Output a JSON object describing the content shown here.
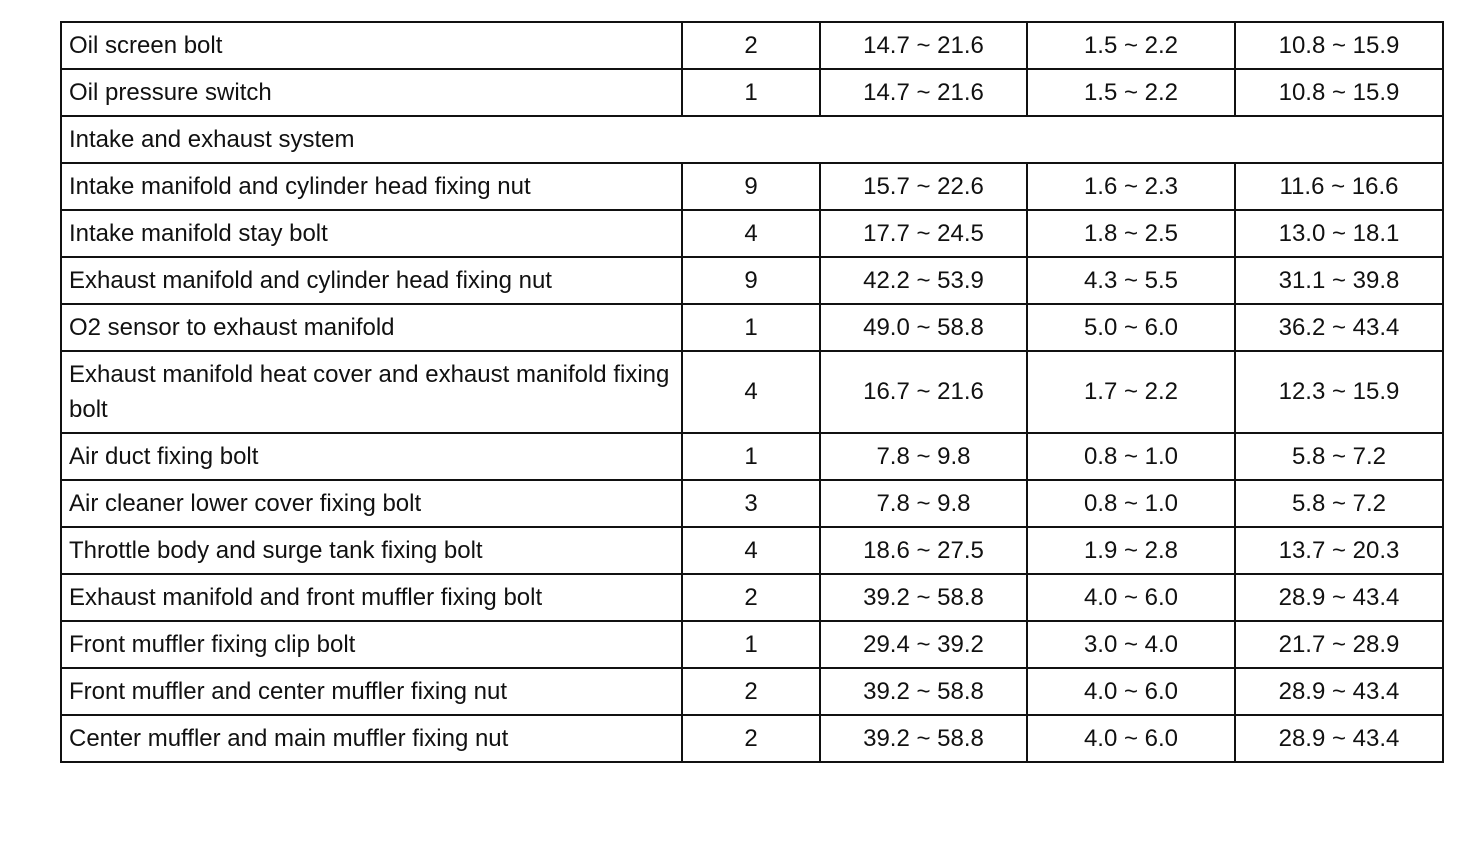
{
  "rows": [
    {
      "type": "item",
      "name": "Oil screen bolt",
      "qty": "2",
      "nm": "14.7 ~ 21.6",
      "kgfm": "1.5 ~ 2.2",
      "lbft": "10.8 ~ 15.9"
    },
    {
      "type": "item",
      "name": "Oil pressure switch",
      "qty": "1",
      "nm": "14.7 ~ 21.6",
      "kgfm": "1.5 ~ 2.2",
      "lbft": "10.8 ~ 15.9"
    },
    {
      "type": "section",
      "name": "Intake and exhaust system"
    },
    {
      "type": "item",
      "name": "Intake manifold and cylinder head fixing nut",
      "qty": "9",
      "nm": "15.7 ~ 22.6",
      "kgfm": "1.6 ~ 2.3",
      "lbft": "11.6 ~ 16.6"
    },
    {
      "type": "item",
      "name": "Intake manifold stay bolt",
      "qty": "4",
      "nm": "17.7 ~ 24.5",
      "kgfm": "1.8 ~ 2.5",
      "lbft": "13.0 ~ 18.1"
    },
    {
      "type": "item",
      "name": "Exhaust manifold and cylinder head fixing nut",
      "qty": "9",
      "nm": "42.2 ~ 53.9",
      "kgfm": "4.3 ~ 5.5",
      "lbft": "31.1 ~ 39.8"
    },
    {
      "type": "item",
      "name": "O2 sensor to exhaust manifold",
      "qty": "1",
      "nm": "49.0 ~ 58.8",
      "kgfm": "5.0 ~ 6.0",
      "lbft": "36.2 ~ 43.4"
    },
    {
      "type": "item",
      "tall": true,
      "name": "Exhaust manifold heat cover and exhaust manifold fixing bolt",
      "qty": "4",
      "nm": "16.7 ~ 21.6",
      "kgfm": "1.7 ~ 2.2",
      "lbft": "12.3 ~ 15.9"
    },
    {
      "type": "item",
      "name": "Air duct fixing bolt",
      "qty": "1",
      "nm": "7.8 ~ 9.8",
      "kgfm": "0.8 ~ 1.0",
      "lbft": "5.8 ~ 7.2"
    },
    {
      "type": "item",
      "name": "Air cleaner lower cover fixing bolt",
      "qty": "3",
      "nm": "7.8 ~ 9.8",
      "kgfm": "0.8 ~ 1.0",
      "lbft": "5.8 ~ 7.2"
    },
    {
      "type": "item",
      "name": "Throttle body and surge tank fixing bolt",
      "qty": "4",
      "nm": "18.6 ~ 27.5",
      "kgfm": "1.9 ~ 2.8",
      "lbft": "13.7 ~ 20.3"
    },
    {
      "type": "item",
      "name": "Exhaust manifold and front muffler fixing bolt",
      "qty": "2",
      "nm": "39.2 ~ 58.8",
      "kgfm": "4.0 ~ 6.0",
      "lbft": "28.9 ~ 43.4"
    },
    {
      "type": "item",
      "name": "Front muffler fixing clip bolt",
      "qty": "1",
      "nm": "29.4 ~ 39.2",
      "kgfm": "3.0 ~ 4.0",
      "lbft": "21.7 ~ 28.9"
    },
    {
      "type": "item",
      "name": "Front muffler and center muffler fixing nut",
      "qty": "2",
      "nm": "39.2 ~ 58.8",
      "kgfm": "4.0 ~ 6.0",
      "lbft": "28.9 ~ 43.4"
    },
    {
      "type": "item",
      "name": "Center muffler and main muffler fixing nut",
      "qty": "2",
      "nm": "39.2 ~ 58.8",
      "kgfm": "4.0 ~ 6.0",
      "lbft": "28.9 ~ 43.4"
    }
  ]
}
